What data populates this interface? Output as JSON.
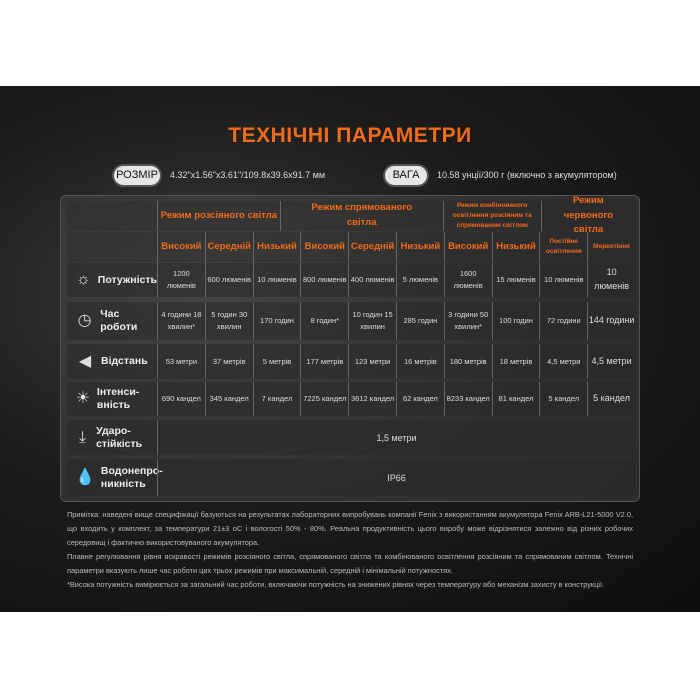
{
  "title": "ТЕХНІЧНІ ПАРАМЕТРИ",
  "size": {
    "label": "РОЗМІР",
    "value": "4.32\"x1.56\"x3.61\"/109.8x39.6x91.7 мм"
  },
  "weight": {
    "label": "ВАГА",
    "value": "10.58 унції/300 г (включно з акумулятором)"
  },
  "groups": [
    "Режим розсіяного світла",
    "Режим спрямованого світла",
    "Режим комбінованого освітлення розсіяним та спрямованим світлом",
    "Режим червоного світла"
  ],
  "modes": [
    "Високий",
    "Середній",
    "Низький",
    "Високий",
    "Середній",
    "Низький",
    "Високий",
    "Низький",
    "Постійне освітлення",
    "Мерехтіння"
  ],
  "rows": [
    {
      "label": "Потужність",
      "icon": "sun-icon",
      "values": [
        "1200 люменів",
        "600 люменів",
        "10 люменів",
        "800 люменів",
        "400 люменів",
        "5 люменів",
        "1600 люменів",
        "15 люменів",
        "10 люменів",
        "10 люменів"
      ]
    },
    {
      "label": "Час роботи",
      "icon": "clock-icon",
      "values": [
        "4 години 18 хвилин*",
        "5 годин 30 хвилин",
        "170 годин",
        "8 годин*",
        "10 годин 15 хвилин",
        "285 годин",
        "3 години 50 хвилин*",
        "100 годин",
        "72 години",
        "144 години"
      ]
    },
    {
      "label": "Відстань",
      "icon": "beam-icon",
      "values": [
        "53 метри",
        "37 метрів",
        "5 метрів",
        "177 метрів",
        "123 метри",
        "16 метрів",
        "180 метрів",
        "18 метрів",
        "4,5 метри",
        "4,5 метри"
      ]
    },
    {
      "label": "Інтенси-вність",
      "icon": "intensity-icon",
      "values": [
        "690 кандел",
        "345 кандел",
        "7 кандел",
        "7225 кандел",
        "3612 кандел",
        "62 кандел",
        "8233 кандел",
        "81 кандел",
        "5 кандел",
        "5 кандел"
      ]
    }
  ],
  "impact": {
    "label": "Ударо-стійкість",
    "value": "1,5 метри"
  },
  "water": {
    "label": "Водонепро-никність",
    "value": "IP66"
  },
  "notes": [
    "Примітка: наведені вище специфікації базуються на результатах лабораторних випробувань компанії Fenix з використанням акумулятора Fenix ARB-L21-5000 V2.0, що входить у комплект, за температури 21±3 оС і вологості 50% - 80%. Реальна продуктивність цього виробу може відрізнятися залежно від різних робочих середовищ і фактично використовуваного акумулятора.",
    "Плавне регулювання рівня яскравості режимів розсіяного світла, спрямованого світла та комбінованого освітлення розсіяним та спрямованим світлом. Технічні параметри вказують лише час роботи цих трьох режимів при максимальній, середній і мінімальній потужностях.",
    "*Висока потужність вимірюється за загальний час роботи, включаючи потужність на знижених рівнях через температуру або механізм захисту в конструкції."
  ],
  "accent": "#f26a1b"
}
